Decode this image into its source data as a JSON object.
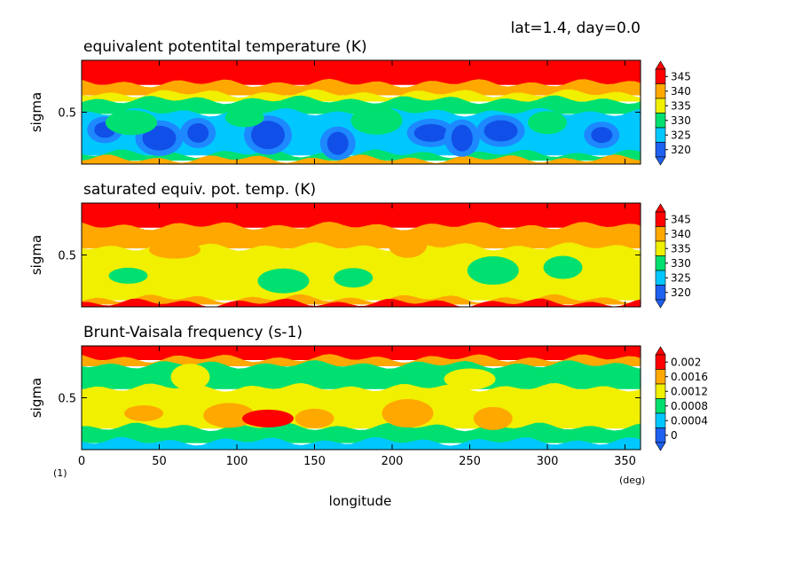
{
  "header": {
    "label": "lat=1.4, day=0.0"
  },
  "figure": {
    "xlabel": "longitude",
    "x_unit": "(deg)",
    "corner_note": "(1)"
  },
  "colors": {
    "levels": [
      "#1e60f0",
      "#00c8ff",
      "#00e070",
      "#f0f000",
      "#ffa800",
      "#ff0000"
    ],
    "deep": "#1050e8"
  },
  "chart_data": [
    {
      "type": "heatmap",
      "title": "equivalent potentital temperature (K)",
      "xlabel": "",
      "ylabel": "sigma",
      "xlim": [
        0,
        360
      ],
      "ylim": [
        0,
        1
      ],
      "x_ticks": [
        0,
        50,
        100,
        150,
        200,
        250,
        300,
        350
      ],
      "y_ticks": [
        0.5
      ],
      "colorbar": [
        "320",
        "325",
        "330",
        "335",
        "340",
        "345"
      ],
      "bands_top_to_bottom": [
        {
          "sigma_top": 1.0,
          "sigma_bottom": 0.78,
          "level": 5
        },
        {
          "sigma_top": 0.78,
          "sigma_bottom": 0.68,
          "level": 4
        },
        {
          "sigma_top": 0.68,
          "sigma_bottom": 0.62,
          "level": 3
        },
        {
          "sigma_top": 0.62,
          "sigma_bottom": 0.5,
          "level": 2
        },
        {
          "sigma_top": 0.5,
          "sigma_bottom": 0.1,
          "level": 1
        },
        {
          "sigma_top": 0.1,
          "sigma_bottom": 0.05,
          "level": 2
        },
        {
          "sigma_top": 0.05,
          "sigma_bottom": 0.0,
          "level": 4
        }
      ],
      "cells": [
        {
          "x": 15,
          "y": 0.33,
          "level": 0
        },
        {
          "x": 50,
          "y": 0.25,
          "level": 0
        },
        {
          "x": 75,
          "y": 0.3,
          "level": 0
        },
        {
          "x": 120,
          "y": 0.28,
          "level": 0
        },
        {
          "x": 165,
          "y": 0.2,
          "level": 0
        },
        {
          "x": 225,
          "y": 0.3,
          "level": 0
        },
        {
          "x": 245,
          "y": 0.25,
          "level": 0
        },
        {
          "x": 270,
          "y": 0.32,
          "level": 0
        },
        {
          "x": 335,
          "y": 0.28,
          "level": 0
        },
        {
          "x": 32,
          "y": 0.4,
          "level": 2
        },
        {
          "x": 105,
          "y": 0.45,
          "level": 2
        },
        {
          "x": 190,
          "y": 0.42,
          "level": 2
        },
        {
          "x": 300,
          "y": 0.4,
          "level": 2
        }
      ]
    },
    {
      "type": "heatmap",
      "title": "saturated equiv. pot. temp. (K)",
      "xlabel": "",
      "ylabel": "sigma",
      "xlim": [
        0,
        360
      ],
      "ylim": [
        0,
        1
      ],
      "x_ticks": [
        0,
        50,
        100,
        150,
        200,
        250,
        300,
        350
      ],
      "y_ticks": [
        0.5
      ],
      "colorbar": [
        "320",
        "325",
        "330",
        "335",
        "340",
        "345"
      ],
      "bands_top_to_bottom": [
        {
          "sigma_top": 1.0,
          "sigma_bottom": 0.78,
          "level": 5
        },
        {
          "sigma_top": 0.78,
          "sigma_bottom": 0.58,
          "level": 4
        },
        {
          "sigma_top": 0.58,
          "sigma_bottom": 0.08,
          "level": 3
        },
        {
          "sigma_top": 0.08,
          "sigma_bottom": 0.04,
          "level": 4
        },
        {
          "sigma_top": 0.04,
          "sigma_bottom": 0.0,
          "level": 5
        }
      ],
      "cells": [
        {
          "x": 30,
          "y": 0.3,
          "level": 2
        },
        {
          "x": 130,
          "y": 0.25,
          "level": 2
        },
        {
          "x": 175,
          "y": 0.28,
          "level": 2
        },
        {
          "x": 265,
          "y": 0.35,
          "level": 2
        },
        {
          "x": 310,
          "y": 0.38,
          "level": 2
        },
        {
          "x": 60,
          "y": 0.55,
          "level": 4
        },
        {
          "x": 210,
          "y": 0.6,
          "level": 4
        }
      ]
    },
    {
      "type": "heatmap",
      "title": "Brunt-Vaisala frequency (s-1)",
      "xlabel": "longitude",
      "ylabel": "sigma",
      "xlim": [
        0,
        360
      ],
      "ylim": [
        0,
        1
      ],
      "x_ticks": [
        0,
        50,
        100,
        150,
        200,
        250,
        300,
        350
      ],
      "y_ticks": [
        0.5
      ],
      "colorbar": [
        "0",
        "0.0004",
        "0.0008",
        "0.0012",
        "0.0016",
        "0.002"
      ],
      "bands_top_to_bottom": [
        {
          "sigma_top": 1.0,
          "sigma_bottom": 0.88,
          "level": 5
        },
        {
          "sigma_top": 0.88,
          "sigma_bottom": 0.82,
          "level": 4
        },
        {
          "sigma_top": 0.82,
          "sigma_bottom": 0.6,
          "level": 2
        },
        {
          "sigma_top": 0.6,
          "sigma_bottom": 0.22,
          "level": 3
        },
        {
          "sigma_top": 0.22,
          "sigma_bottom": 0.08,
          "level": 2
        },
        {
          "sigma_top": 0.08,
          "sigma_bottom": 0.0,
          "level": 1
        }
      ],
      "cells": [
        {
          "x": 40,
          "y": 0.35,
          "level": 4
        },
        {
          "x": 95,
          "y": 0.33,
          "level": 4
        },
        {
          "x": 150,
          "y": 0.3,
          "level": 4
        },
        {
          "x": 210,
          "y": 0.35,
          "level": 4
        },
        {
          "x": 265,
          "y": 0.3,
          "level": 4
        },
        {
          "x": 120,
          "y": 0.3,
          "level": 5
        },
        {
          "x": 70,
          "y": 0.7,
          "level": 3
        },
        {
          "x": 250,
          "y": 0.68,
          "level": 3
        }
      ]
    }
  ]
}
